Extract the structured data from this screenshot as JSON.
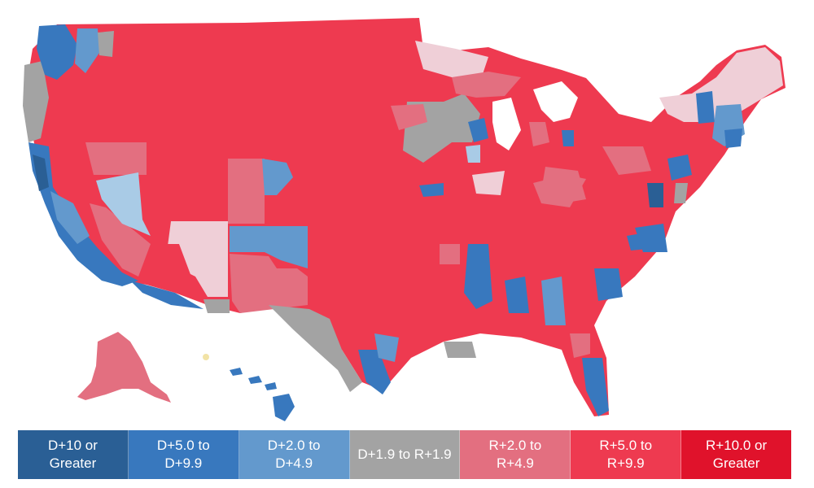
{
  "map": {
    "region": "United States counties",
    "colors": {
      "d10": "#2a5f95",
      "d5": "#3878be",
      "d2": "#6399cd",
      "d2light": "#a9cbe6",
      "toss": "#a3a3a3",
      "r2light": "#efcfd7",
      "r2": "#e36f80",
      "r5": "#ee3a50",
      "r10": "#e0122b",
      "hawaii_dot": "#f2e3a6"
    }
  },
  "legend": {
    "items": [
      {
        "label": "D+10 or\nGreater",
        "color": "#2a5f95"
      },
      {
        "label": "D+5.0 to\nD+9.9",
        "color": "#3878be"
      },
      {
        "label": "D+2.0 to\nD+4.9",
        "color": "#6399cd"
      },
      {
        "label": "D+1.9 to R+1.9",
        "color": "#a3a3a3"
      },
      {
        "label": "R+2.0 to\nR+4.9",
        "color": "#e36f80"
      },
      {
        "label": "R+5.0 to\nR+9.9",
        "color": "#ee3a50"
      },
      {
        "label": "R+10.0 or\nGreater",
        "color": "#e0122b"
      }
    ]
  }
}
